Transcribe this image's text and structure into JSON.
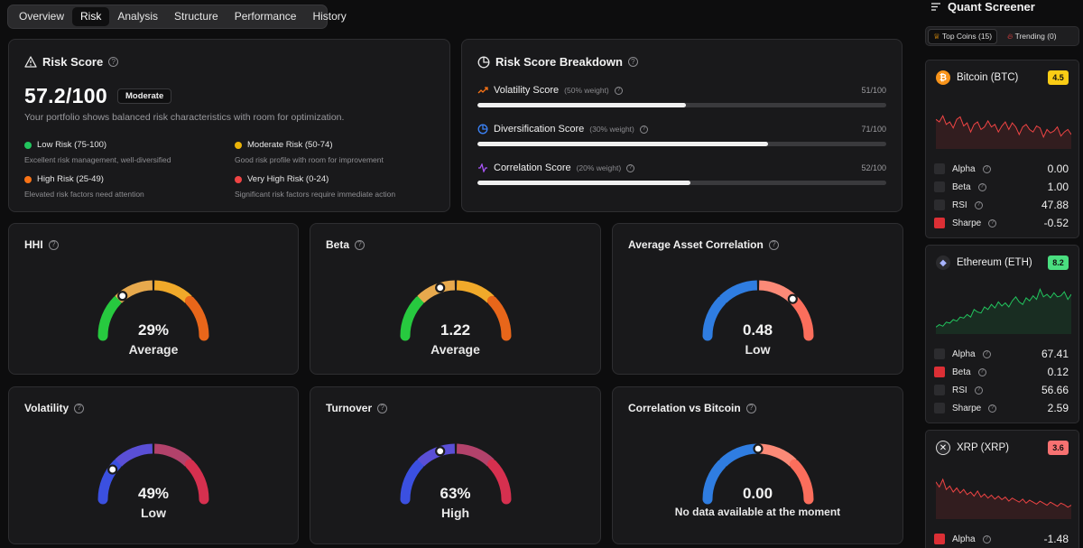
{
  "tabs": [
    "Overview",
    "Risk",
    "Analysis",
    "Structure",
    "Performance",
    "History"
  ],
  "active_tab": "Risk",
  "risk_score": {
    "title": "Risk Score",
    "help": "?",
    "value": "57.2/100",
    "badge": "Moderate",
    "description": "Your portfolio shows balanced risk characteristics with room for optimization.",
    "legend": [
      {
        "label": "Low Risk (75-100)",
        "desc": "Excellent risk management, well-diversified",
        "color": "#22c55e"
      },
      {
        "label": "Moderate Risk (50-74)",
        "desc": "Good risk profile with room for improvement",
        "color": "#eab308"
      },
      {
        "label": "High Risk (25-49)",
        "desc": "Elevated risk factors need attention",
        "color": "#f97316"
      },
      {
        "label": "Very High Risk (0-24)",
        "desc": "Significant risk factors require immediate action",
        "color": "#ef4444"
      }
    ]
  },
  "breakdown": {
    "title": "Risk Score Breakdown",
    "rows": [
      {
        "label": "Volatility Score",
        "weight": "(50% weight)",
        "value": "51/100",
        "fraction": 0.51,
        "icon": "trend-up-icon",
        "icon_color": "#f97316"
      },
      {
        "label": "Diversification Score",
        "weight": "(30% weight)",
        "value": "71/100",
        "fraction": 0.71,
        "icon": "pie-chart-icon",
        "icon_color": "#3b82f6"
      },
      {
        "label": "Correlation Score",
        "weight": "(20% weight)",
        "value": "52/100",
        "fraction": 0.52,
        "icon": "activity-icon",
        "icon_color": "#a855f7"
      }
    ]
  },
  "gauges": [
    {
      "id": "hhi",
      "title": "HHI",
      "value": "29%",
      "label": "Average",
      "level": 0.29,
      "palette": "warm"
    },
    {
      "id": "beta",
      "title": "Beta",
      "value": "1.22",
      "label": "Average",
      "level": 0.4,
      "palette": "warm"
    },
    {
      "id": "avg-corr",
      "title": "Average Asset Correlation",
      "value": "0.48",
      "label": "Low",
      "level": 0.74,
      "palette": "blue-salmon"
    },
    {
      "id": "volatility",
      "title": "Volatility",
      "value": "49%",
      "label": "Low",
      "level": 0.2,
      "palette": "blue-crimson"
    },
    {
      "id": "turnover",
      "title": "Turnover",
      "value": "63%",
      "label": "High",
      "level": 0.4,
      "palette": "blue-crimson"
    },
    {
      "id": "corr-btc",
      "title": "Correlation vs Bitcoin",
      "value": "0.00",
      "label": "No data available at the moment",
      "level": 0.5,
      "palette": "blue-salmon"
    }
  ],
  "screener": {
    "title": "Quant Screener",
    "tabs": [
      {
        "label": "Top Coins (15)",
        "icon": "trophy-icon",
        "active": true
      },
      {
        "label": "Trending (0)",
        "icon": "flame-icon",
        "active": false
      }
    ],
    "coins": [
      {
        "name": "Bitcoin (BTC)",
        "score": "4.5",
        "score_color": "#facc15",
        "icon_color": "#f7931a",
        "icon_glyph": "₿",
        "trend": "down",
        "line_color": "#ef4444",
        "spark": [
          0.55,
          0.5,
          0.62,
          0.45,
          0.5,
          0.38,
          0.55,
          0.6,
          0.42,
          0.48,
          0.3,
          0.45,
          0.5,
          0.35,
          0.4,
          0.52,
          0.4,
          0.45,
          0.3,
          0.42,
          0.5,
          0.35,
          0.48,
          0.4,
          0.25,
          0.4,
          0.45,
          0.35,
          0.3,
          0.42,
          0.38,
          0.2,
          0.35,
          0.28,
          0.32,
          0.4,
          0.22,
          0.3,
          0.35,
          0.25
        ],
        "metrics": [
          {
            "label": "Alpha",
            "value": "0.00",
            "flag": false
          },
          {
            "label": "Beta",
            "value": "1.00",
            "flag": false
          },
          {
            "label": "RSI",
            "value": "47.88",
            "flag": false
          },
          {
            "label": "Sharpe",
            "value": "-0.52",
            "flag": true
          }
        ]
      },
      {
        "name": "Ethereum (ETH)",
        "score": "8.2",
        "score_color": "#4ade80",
        "icon_color": "#2b2b2e",
        "icon_glyph": "◆",
        "trend": "up",
        "line_color": "#22c55e",
        "spark": [
          0.1,
          0.15,
          0.12,
          0.2,
          0.18,
          0.25,
          0.22,
          0.3,
          0.28,
          0.35,
          0.3,
          0.45,
          0.4,
          0.38,
          0.5,
          0.45,
          0.55,
          0.48,
          0.6,
          0.52,
          0.58,
          0.5,
          0.62,
          0.7,
          0.6,
          0.55,
          0.68,
          0.62,
          0.72,
          0.65,
          0.85,
          0.7,
          0.75,
          0.68,
          0.78,
          0.7,
          0.72,
          0.8,
          0.65,
          0.75
        ],
        "metrics": [
          {
            "label": "Alpha",
            "value": "67.41",
            "flag": false
          },
          {
            "label": "Beta",
            "value": "0.12",
            "flag": true
          },
          {
            "label": "RSI",
            "value": "56.66",
            "flag": false
          },
          {
            "label": "Sharpe",
            "value": "2.59",
            "flag": false
          }
        ]
      },
      {
        "name": "XRP (XRP)",
        "score": "3.6",
        "score_color": "#f87171",
        "icon_color": "#2b2b2e",
        "icon_glyph": "✕",
        "trend": "down",
        "line_color": "#ef4444",
        "spark": [
          0.7,
          0.6,
          0.75,
          0.55,
          0.62,
          0.5,
          0.58,
          0.48,
          0.55,
          0.45,
          0.5,
          0.42,
          0.52,
          0.4,
          0.46,
          0.38,
          0.44,
          0.36,
          0.42,
          0.35,
          0.4,
          0.32,
          0.38,
          0.34,
          0.3,
          0.36,
          0.28,
          0.34,
          0.3,
          0.26,
          0.32,
          0.28,
          0.24,
          0.3,
          0.26,
          0.22,
          0.28,
          0.25,
          0.2,
          0.24
        ],
        "metrics": [
          {
            "label": "Alpha",
            "value": "-1.48",
            "flag": true
          }
        ]
      }
    ]
  }
}
